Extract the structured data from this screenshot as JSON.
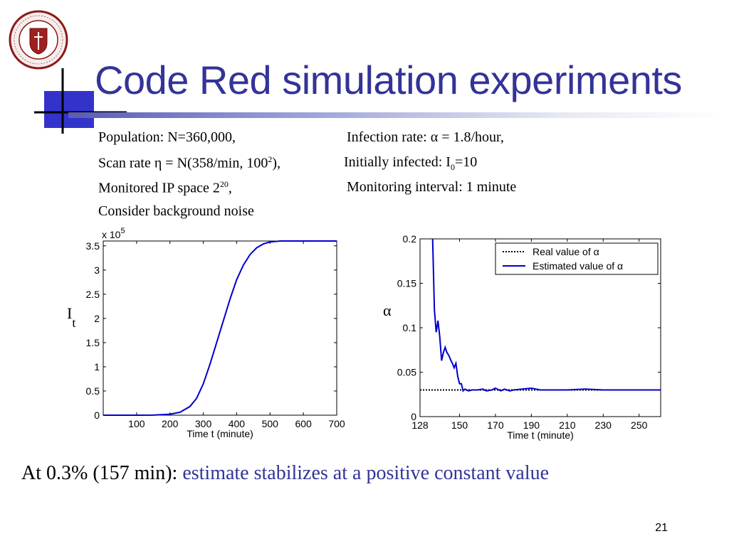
{
  "slide": {
    "title": "Code Red simulation experiments",
    "page_number": "21",
    "logo_name": "university-seal",
    "logo_text": "UNIVERSITY OF MASSACHUSETTS AMHERST 1863",
    "colors": {
      "title": "#333399",
      "highlight": "#333399",
      "line": "#0000cc"
    }
  },
  "params": {
    "population": "Population: N=360,000,",
    "infection_rate": "Infection rate: α = 1.8/hour,",
    "scan_rate_prefix": "Scan rate η = N(358/min, 100",
    "scan_rate_sup": "2",
    "scan_rate_suffix": "),",
    "initially_prefix": "Initially infected: I",
    "initially_sub": "0",
    "initially_suffix": "=10",
    "monitored_prefix": "Monitored IP space 2",
    "monitored_sup": "20",
    "monitored_suffix": ",",
    "monitoring_interval": "Monitoring interval: 1 minute",
    "background_noise": "Consider background noise"
  },
  "bottom_text": {
    "prefix": "At 0.3% (157 min): ",
    "highlight": "estimate stabilizes at a positive constant value"
  },
  "chart_data": [
    {
      "type": "line",
      "xlabel": "Time t (minute)",
      "ylabel_main": "I",
      "ylabel_sub": "t",
      "y_multiplier": "x 10",
      "y_multiplier_exp": "5",
      "xlim": [
        0,
        700
      ],
      "ylim": [
        0,
        3.6
      ],
      "xticks": [
        100,
        200,
        300,
        400,
        500,
        600,
        700
      ],
      "yticks": [
        0,
        0.5,
        1,
        1.5,
        2,
        2.5,
        3,
        3.5
      ],
      "ytick_labels": [
        "0",
        "0.5",
        "1",
        "1.5",
        "2",
        "2.5",
        "3",
        "3.5"
      ],
      "series": [
        {
          "color": "#0000cc",
          "x": [
            0,
            100,
            150,
            200,
            230,
            260,
            280,
            300,
            320,
            340,
            360,
            380,
            400,
            420,
            440,
            460,
            480,
            500,
            530,
            560,
            600,
            700
          ],
          "y": [
            0,
            0,
            0.001,
            0.02,
            0.06,
            0.18,
            0.35,
            0.65,
            1.05,
            1.5,
            1.95,
            2.4,
            2.8,
            3.1,
            3.32,
            3.46,
            3.54,
            3.58,
            3.6,
            3.6,
            3.6,
            3.6
          ]
        }
      ]
    },
    {
      "type": "line",
      "xlabel": "Time t (minute)",
      "ylabel": "α",
      "xlim": [
        128,
        262
      ],
      "ylim": [
        0,
        0.2
      ],
      "xticks": [
        128,
        150,
        170,
        190,
        210,
        230,
        250
      ],
      "yticks": [
        0,
        0.05,
        0.1,
        0.15,
        0.2
      ],
      "ytick_labels": [
        "0",
        "0.05",
        "0.1",
        "0.15",
        "0.2"
      ],
      "legend_position": "top-right",
      "series": [
        {
          "name": "Real value of α",
          "style": "dotted",
          "color": "#000000",
          "x": [
            128,
            262
          ],
          "y": [
            0.03,
            0.03
          ]
        },
        {
          "name": "Estimated value of α",
          "style": "solid",
          "color": "#0000cc",
          "x": [
            135,
            136,
            137,
            138,
            139,
            140,
            141,
            142,
            143,
            144,
            145,
            146,
            147,
            148,
            149,
            150,
            151,
            152,
            153,
            155,
            157,
            160,
            163,
            165,
            168,
            170,
            173,
            175,
            178,
            180,
            185,
            190,
            195,
            200,
            210,
            220,
            230,
            240,
            250,
            262
          ],
          "y": [
            0.2,
            0.12,
            0.095,
            0.108,
            0.09,
            0.063,
            0.072,
            0.078,
            0.072,
            0.069,
            0.064,
            0.06,
            0.055,
            0.06,
            0.045,
            0.037,
            0.037,
            0.029,
            0.031,
            0.029,
            0.03,
            0.03,
            0.031,
            0.029,
            0.03,
            0.032,
            0.029,
            0.031,
            0.029,
            0.03,
            0.031,
            0.032,
            0.03,
            0.03,
            0.03,
            0.031,
            0.03,
            0.03,
            0.03,
            0.03
          ]
        }
      ]
    }
  ]
}
